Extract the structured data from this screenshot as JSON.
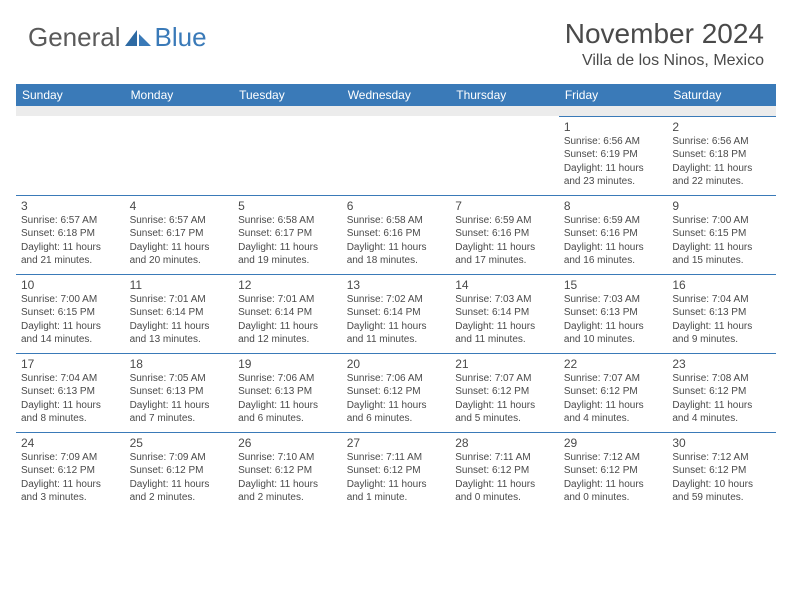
{
  "logo": {
    "text1": "General",
    "text2": "Blue"
  },
  "title": "November 2024",
  "location": "Villa de los Ninos, Mexico",
  "colors": {
    "header_bg": "#3a7ab8",
    "header_text": "#ffffff",
    "cell_border": "#3a7ab8",
    "text": "#4a4a4a",
    "blank_bg": "#ececec"
  },
  "day_headers": [
    "Sunday",
    "Monday",
    "Tuesday",
    "Wednesday",
    "Thursday",
    "Friday",
    "Saturday"
  ],
  "weeks": [
    [
      null,
      null,
      null,
      null,
      null,
      {
        "n": "1",
        "sr": "6:56 AM",
        "ss": "6:19 PM",
        "dl": "11 hours and 23 minutes."
      },
      {
        "n": "2",
        "sr": "6:56 AM",
        "ss": "6:18 PM",
        "dl": "11 hours and 22 minutes."
      }
    ],
    [
      {
        "n": "3",
        "sr": "6:57 AM",
        "ss": "6:18 PM",
        "dl": "11 hours and 21 minutes."
      },
      {
        "n": "4",
        "sr": "6:57 AM",
        "ss": "6:17 PM",
        "dl": "11 hours and 20 minutes."
      },
      {
        "n": "5",
        "sr": "6:58 AM",
        "ss": "6:17 PM",
        "dl": "11 hours and 19 minutes."
      },
      {
        "n": "6",
        "sr": "6:58 AM",
        "ss": "6:16 PM",
        "dl": "11 hours and 18 minutes."
      },
      {
        "n": "7",
        "sr": "6:59 AM",
        "ss": "6:16 PM",
        "dl": "11 hours and 17 minutes."
      },
      {
        "n": "8",
        "sr": "6:59 AM",
        "ss": "6:16 PM",
        "dl": "11 hours and 16 minutes."
      },
      {
        "n": "9",
        "sr": "7:00 AM",
        "ss": "6:15 PM",
        "dl": "11 hours and 15 minutes."
      }
    ],
    [
      {
        "n": "10",
        "sr": "7:00 AM",
        "ss": "6:15 PM",
        "dl": "11 hours and 14 minutes."
      },
      {
        "n": "11",
        "sr": "7:01 AM",
        "ss": "6:14 PM",
        "dl": "11 hours and 13 minutes."
      },
      {
        "n": "12",
        "sr": "7:01 AM",
        "ss": "6:14 PM",
        "dl": "11 hours and 12 minutes."
      },
      {
        "n": "13",
        "sr": "7:02 AM",
        "ss": "6:14 PM",
        "dl": "11 hours and 11 minutes."
      },
      {
        "n": "14",
        "sr": "7:03 AM",
        "ss": "6:14 PM",
        "dl": "11 hours and 11 minutes."
      },
      {
        "n": "15",
        "sr": "7:03 AM",
        "ss": "6:13 PM",
        "dl": "11 hours and 10 minutes."
      },
      {
        "n": "16",
        "sr": "7:04 AM",
        "ss": "6:13 PM",
        "dl": "11 hours and 9 minutes."
      }
    ],
    [
      {
        "n": "17",
        "sr": "7:04 AM",
        "ss": "6:13 PM",
        "dl": "11 hours and 8 minutes."
      },
      {
        "n": "18",
        "sr": "7:05 AM",
        "ss": "6:13 PM",
        "dl": "11 hours and 7 minutes."
      },
      {
        "n": "19",
        "sr": "7:06 AM",
        "ss": "6:13 PM",
        "dl": "11 hours and 6 minutes."
      },
      {
        "n": "20",
        "sr": "7:06 AM",
        "ss": "6:12 PM",
        "dl": "11 hours and 6 minutes."
      },
      {
        "n": "21",
        "sr": "7:07 AM",
        "ss": "6:12 PM",
        "dl": "11 hours and 5 minutes."
      },
      {
        "n": "22",
        "sr": "7:07 AM",
        "ss": "6:12 PM",
        "dl": "11 hours and 4 minutes."
      },
      {
        "n": "23",
        "sr": "7:08 AM",
        "ss": "6:12 PM",
        "dl": "11 hours and 4 minutes."
      }
    ],
    [
      {
        "n": "24",
        "sr": "7:09 AM",
        "ss": "6:12 PM",
        "dl": "11 hours and 3 minutes."
      },
      {
        "n": "25",
        "sr": "7:09 AM",
        "ss": "6:12 PM",
        "dl": "11 hours and 2 minutes."
      },
      {
        "n": "26",
        "sr": "7:10 AM",
        "ss": "6:12 PM",
        "dl": "11 hours and 2 minutes."
      },
      {
        "n": "27",
        "sr": "7:11 AM",
        "ss": "6:12 PM",
        "dl": "11 hours and 1 minute."
      },
      {
        "n": "28",
        "sr": "7:11 AM",
        "ss": "6:12 PM",
        "dl": "11 hours and 0 minutes."
      },
      {
        "n": "29",
        "sr": "7:12 AM",
        "ss": "6:12 PM",
        "dl": "11 hours and 0 minutes."
      },
      {
        "n": "30",
        "sr": "7:12 AM",
        "ss": "6:12 PM",
        "dl": "10 hours and 59 minutes."
      }
    ]
  ],
  "labels": {
    "sunrise": "Sunrise: ",
    "sunset": "Sunset: ",
    "daylight": "Daylight: "
  }
}
